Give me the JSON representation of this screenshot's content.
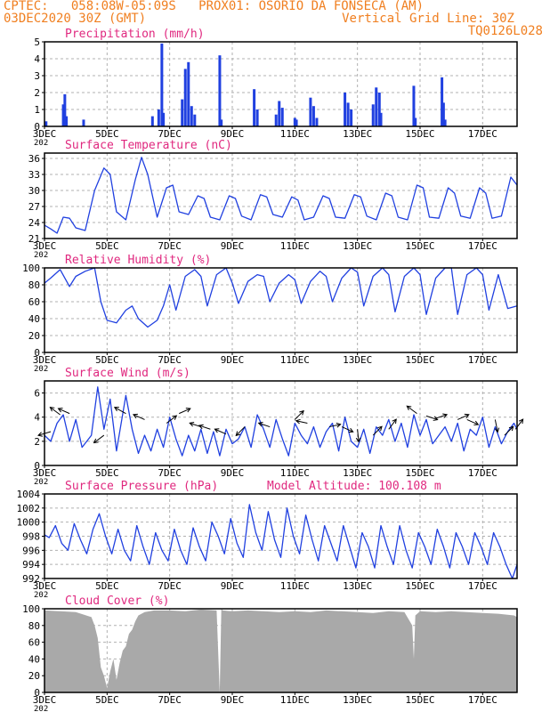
{
  "header": {
    "line1": "CPTEC:   058:08W-05:09S   PROX01: OSORIO DA FONSECA (AM)",
    "date": "03DEC2020 30Z (GMT)",
    "grid_note": "Vertical Grid Line: 30Z",
    "code": "TQ0126L028"
  },
  "colors": {
    "header": "#f07f20",
    "panel_title": "#e0287f",
    "series": "#2040e0",
    "cloud_fill": "#a9a9a9",
    "grid": "#b0b0b0",
    "wind_arrow": "#000000"
  },
  "x_axis": {
    "tick_labels": [
      "3DEC",
      "5DEC",
      "7DEC",
      "9DEC",
      "11DEC",
      "13DEC",
      "15DEC",
      "17DEC"
    ],
    "tick_days": [
      3,
      5,
      7,
      9,
      11,
      13,
      15,
      17
    ],
    "range_days": [
      3,
      18.1
    ],
    "year_stub": "202"
  },
  "chart_data": [
    {
      "id": "precip",
      "type": "bar",
      "title": "Precipitation (mm/h)",
      "ylim": [
        0,
        5
      ],
      "yticks": [
        0,
        1,
        2,
        3,
        4,
        5
      ],
      "grid": true,
      "bars": [
        [
          3.05,
          0.3
        ],
        [
          3.6,
          1.3
        ],
        [
          3.65,
          1.9
        ],
        [
          3.7,
          0.6
        ],
        [
          4.25,
          0.4
        ],
        [
          6.45,
          0.6
        ],
        [
          6.65,
          1.0
        ],
        [
          6.75,
          4.9
        ],
        [
          6.8,
          0.8
        ],
        [
          7.4,
          1.6
        ],
        [
          7.5,
          3.4
        ],
        [
          7.6,
          3.8
        ],
        [
          7.7,
          1.2
        ],
        [
          7.8,
          0.7
        ],
        [
          8.6,
          4.2
        ],
        [
          8.65,
          0.4
        ],
        [
          9.7,
          2.2
        ],
        [
          9.8,
          1.0
        ],
        [
          10.4,
          0.7
        ],
        [
          10.5,
          1.5
        ],
        [
          10.6,
          1.1
        ],
        [
          11.0,
          0.5
        ],
        [
          11.05,
          0.4
        ],
        [
          11.5,
          1.7
        ],
        [
          11.6,
          1.2
        ],
        [
          11.7,
          0.5
        ],
        [
          12.6,
          2.0
        ],
        [
          12.7,
          1.4
        ],
        [
          12.8,
          1.0
        ],
        [
          13.5,
          1.3
        ],
        [
          13.6,
          2.3
        ],
        [
          13.7,
          2.0
        ],
        [
          13.75,
          0.8
        ],
        [
          14.8,
          2.4
        ],
        [
          14.85,
          0.5
        ],
        [
          15.7,
          2.9
        ],
        [
          15.75,
          1.4
        ],
        [
          15.8,
          0.4
        ]
      ]
    },
    {
      "id": "temp",
      "type": "line",
      "title": "Surface Temperature (nC)",
      "ylim": [
        21,
        37
      ],
      "yticks": [
        21,
        24,
        27,
        30,
        33,
        36
      ],
      "grid": true,
      "x": [
        3.0,
        3.2,
        3.4,
        3.6,
        3.8,
        4.0,
        4.3,
        4.6,
        4.9,
        5.1,
        5.3,
        5.6,
        5.9,
        6.1,
        6.3,
        6.6,
        6.9,
        7.1,
        7.3,
        7.6,
        7.9,
        8.1,
        8.3,
        8.6,
        8.9,
        9.1,
        9.3,
        9.6,
        9.9,
        10.1,
        10.3,
        10.6,
        10.9,
        11.1,
        11.3,
        11.6,
        11.9,
        12.1,
        12.3,
        12.6,
        12.9,
        13.1,
        13.3,
        13.6,
        13.9,
        14.1,
        14.3,
        14.6,
        14.9,
        15.1,
        15.3,
        15.6,
        15.9,
        16.1,
        16.3,
        16.6,
        16.9,
        17.1,
        17.3,
        17.6,
        17.9,
        18.1
      ],
      "y": [
        23.5,
        22.8,
        22.0,
        25.0,
        24.8,
        23.0,
        22.5,
        30.0,
        34.2,
        33.0,
        26.0,
        24.5,
        32.0,
        36.2,
        33.0,
        25.0,
        30.5,
        31.0,
        26.0,
        25.5,
        29.0,
        28.5,
        25.0,
        24.5,
        29.0,
        28.5,
        25.2,
        24.5,
        29.2,
        28.8,
        25.5,
        25.0,
        28.8,
        28.2,
        24.5,
        25.0,
        29.0,
        28.5,
        25.0,
        24.8,
        29.2,
        28.8,
        25.2,
        24.5,
        29.5,
        29.0,
        25.0,
        24.5,
        31.0,
        30.5,
        25.0,
        24.8,
        30.5,
        29.5,
        25.2,
        24.8,
        30.5,
        29.5,
        24.8,
        25.2,
        32.5,
        31.0
      ]
    },
    {
      "id": "rh",
      "type": "line",
      "title": "Relative Humidity (%)",
      "ylim": [
        0,
        100
      ],
      "yticks": [
        0,
        20,
        40,
        60,
        80,
        100
      ],
      "grid": true,
      "x": [
        3.0,
        3.2,
        3.5,
        3.8,
        4.0,
        4.3,
        4.6,
        4.8,
        5.0,
        5.3,
        5.6,
        5.8,
        6.0,
        6.3,
        6.6,
        6.8,
        7.0,
        7.2,
        7.5,
        7.8,
        8.0,
        8.2,
        8.5,
        8.8,
        9.0,
        9.2,
        9.5,
        9.8,
        10.0,
        10.2,
        10.5,
        10.8,
        11.0,
        11.2,
        11.5,
        11.8,
        12.0,
        12.2,
        12.5,
        12.8,
        13.0,
        13.2,
        13.5,
        13.8,
        14.0,
        14.2,
        14.5,
        14.8,
        15.0,
        15.2,
        15.5,
        15.8,
        16.0,
        16.2,
        16.5,
        16.8,
        17.0,
        17.2,
        17.5,
        17.8,
        18.1
      ],
      "y": [
        82,
        88,
        98,
        78,
        90,
        96,
        100,
        60,
        38,
        35,
        50,
        55,
        40,
        30,
        38,
        55,
        80,
        50,
        90,
        98,
        90,
        55,
        92,
        100,
        82,
        58,
        84,
        92,
        90,
        60,
        82,
        92,
        86,
        58,
        84,
        96,
        90,
        60,
        88,
        100,
        95,
        55,
        90,
        100,
        92,
        48,
        90,
        100,
        92,
        45,
        88,
        100,
        100,
        45,
        92,
        100,
        92,
        50,
        92,
        52,
        55
      ]
    },
    {
      "id": "wind",
      "type": "line",
      "title": "Surface Wind (m/s)",
      "ylim": [
        0,
        7
      ],
      "yticks": [
        0,
        2,
        4,
        6
      ],
      "grid": true,
      "x": [
        3.0,
        3.2,
        3.4,
        3.6,
        3.8,
        4.0,
        4.2,
        4.5,
        4.7,
        4.9,
        5.1,
        5.3,
        5.6,
        5.8,
        6.0,
        6.2,
        6.4,
        6.6,
        6.8,
        7.0,
        7.2,
        7.4,
        7.6,
        7.8,
        8.0,
        8.2,
        8.4,
        8.6,
        8.8,
        9.0,
        9.2,
        9.4,
        9.6,
        9.8,
        10.0,
        10.2,
        10.4,
        10.6,
        10.8,
        11.0,
        11.2,
        11.4,
        11.6,
        11.8,
        12.0,
        12.2,
        12.4,
        12.6,
        12.8,
        13.0,
        13.2,
        13.4,
        13.6,
        13.8,
        14.0,
        14.2,
        14.4,
        14.6,
        14.8,
        15.0,
        15.2,
        15.4,
        15.6,
        15.8,
        16.0,
        16.2,
        16.4,
        16.6,
        16.8,
        17.0,
        17.2,
        17.4,
        17.6,
        17.8,
        18.0,
        18.1
      ],
      "y": [
        2.5,
        2.0,
        3.5,
        4.2,
        2.0,
        3.8,
        1.5,
        2.5,
        6.5,
        3.0,
        5.5,
        1.2,
        5.8,
        3.0,
        1.0,
        2.5,
        1.2,
        3.0,
        1.5,
        4.0,
        2.2,
        0.8,
        2.5,
        1.2,
        3.0,
        1.0,
        2.8,
        0.8,
        3.0,
        1.8,
        2.2,
        3.2,
        1.5,
        4.2,
        3.0,
        1.5,
        3.8,
        2.2,
        0.8,
        3.5,
        2.5,
        1.8,
        3.2,
        1.5,
        2.8,
        3.5,
        1.2,
        4.0,
        2.0,
        1.5,
        3.0,
        1.0,
        3.2,
        2.5,
        3.8,
        2.0,
        3.5,
        1.5,
        4.2,
        2.5,
        3.8,
        1.8,
        2.5,
        3.2,
        2.0,
        3.5,
        1.2,
        3.0,
        2.5,
        4.0,
        1.5,
        3.2,
        1.8,
        2.8,
        3.5,
        3.0
      ],
      "arrows": [
        {
          "day": 3.2,
          "speed": 2.8,
          "u": -1,
          "v": -0.3
        },
        {
          "day": 3.5,
          "speed": 4.2,
          "u": -0.8,
          "v": 0.6
        },
        {
          "day": 3.8,
          "speed": 4.3,
          "u": -0.9,
          "v": 0.4
        },
        {
          "day": 4.9,
          "speed": 2.5,
          "u": -0.8,
          "v": -0.6
        },
        {
          "day": 5.6,
          "speed": 4.3,
          "u": -0.9,
          "v": 0.5
        },
        {
          "day": 6.2,
          "speed": 3.8,
          "u": -0.9,
          "v": 0.4
        },
        {
          "day": 6.9,
          "speed": 3.5,
          "u": 0.8,
          "v": 0.6
        },
        {
          "day": 7.3,
          "speed": 4.3,
          "u": 0.9,
          "v": 0.4
        },
        {
          "day": 8.0,
          "speed": 3.2,
          "u": -0.9,
          "v": 0.3
        },
        {
          "day": 8.3,
          "speed": 3.0,
          "u": -0.9,
          "v": 0.3
        },
        {
          "day": 8.8,
          "speed": 2.6,
          "u": -0.9,
          "v": 0.4
        },
        {
          "day": 9.4,
          "speed": 3.2,
          "u": -0.7,
          "v": -0.7
        },
        {
          "day": 10.2,
          "speed": 3.2,
          "u": -0.9,
          "v": 0.3
        },
        {
          "day": 11.0,
          "speed": 3.8,
          "u": 0.7,
          "v": 0.7
        },
        {
          "day": 11.4,
          "speed": 3.5,
          "u": -0.9,
          "v": 0.2
        },
        {
          "day": 12.1,
          "speed": 3.2,
          "u": 0.9,
          "v": 0.2
        },
        {
          "day": 12.5,
          "speed": 3.2,
          "u": 0.9,
          "v": -0.4
        },
        {
          "day": 13.0,
          "speed": 3.0,
          "u": 0.1,
          "v": -1
        },
        {
          "day": 13.5,
          "speed": 2.5,
          "u": 0.7,
          "v": 0.7
        },
        {
          "day": 14.0,
          "speed": 3.0,
          "u": 0.6,
          "v": 0.8
        },
        {
          "day": 14.9,
          "speed": 4.3,
          "u": -0.8,
          "v": 0.6
        },
        {
          "day": 15.2,
          "speed": 4.1,
          "u": 0.9,
          "v": -0.3
        },
        {
          "day": 15.5,
          "speed": 3.9,
          "u": 0.9,
          "v": 0.3
        },
        {
          "day": 16.2,
          "speed": 3.8,
          "u": 0.9,
          "v": 0.4
        },
        {
          "day": 16.5,
          "speed": 3.8,
          "u": 0.9,
          "v": -0.4
        },
        {
          "day": 17.4,
          "speed": 3.8,
          "u": 0.2,
          "v": -1
        },
        {
          "day": 17.7,
          "speed": 2.5,
          "u": 0.7,
          "v": 0.7
        },
        {
          "day": 18.05,
          "speed": 3.0,
          "u": 0.6,
          "v": 0.8
        }
      ]
    },
    {
      "id": "pressure",
      "type": "line",
      "title": "Surface Pressure (hPa)",
      "note": "Model Altitude: 100.108  m",
      "ylim": [
        992,
        1004
      ],
      "yticks": [
        992,
        994,
        996,
        998,
        1000,
        1002,
        1004
      ],
      "grid": true,
      "x": [
        3.0,
        3.15,
        3.35,
        3.55,
        3.75,
        3.95,
        4.15,
        4.35,
        4.55,
        4.75,
        4.95,
        5.15,
        5.35,
        5.55,
        5.75,
        5.95,
        6.15,
        6.35,
        6.55,
        6.75,
        6.95,
        7.15,
        7.35,
        7.55,
        7.75,
        7.95,
        8.15,
        8.35,
        8.55,
        8.75,
        8.95,
        9.15,
        9.35,
        9.55,
        9.75,
        9.95,
        10.15,
        10.35,
        10.55,
        10.75,
        10.95,
        11.15,
        11.35,
        11.55,
        11.75,
        11.95,
        12.15,
        12.35,
        12.55,
        12.75,
        12.95,
        13.15,
        13.35,
        13.55,
        13.75,
        13.95,
        14.15,
        14.35,
        14.55,
        14.75,
        14.95,
        15.15,
        15.35,
        15.55,
        15.75,
        15.95,
        16.15,
        16.35,
        16.55,
        16.75,
        16.95,
        17.15,
        17.35,
        17.55,
        17.75,
        17.95,
        18.1
      ],
      "y": [
        998.2,
        997.8,
        999.5,
        997.0,
        996.0,
        999.8,
        997.5,
        995.5,
        999.0,
        1001.2,
        998.0,
        995.5,
        999.0,
        996.0,
        994.5,
        999.5,
        996.5,
        994.0,
        998.5,
        996.0,
        994.5,
        999.0,
        996.0,
        994.0,
        999.2,
        996.5,
        994.5,
        1000.0,
        998.0,
        995.5,
        1000.5,
        997.0,
        995.0,
        1002.5,
        998.5,
        996.0,
        1001.5,
        997.5,
        995.0,
        1002.0,
        998.0,
        995.5,
        1001.0,
        997.5,
        994.5,
        999.5,
        997.0,
        994.5,
        999.5,
        996.5,
        993.5,
        998.5,
        996.5,
        993.5,
        999.5,
        996.5,
        994.0,
        999.5,
        996.0,
        993.5,
        998.5,
        996.5,
        994.0,
        999.0,
        996.5,
        993.5,
        998.5,
        996.5,
        994.0,
        998.5,
        996.5,
        994.0,
        998.5,
        996.5,
        994.0,
        992.0,
        994.0
      ]
    },
    {
      "id": "cloud",
      "type": "area",
      "title": "Cloud Cover (%)",
      "ylim": [
        0,
        100
      ],
      "yticks": [
        0,
        20,
        40,
        60,
        80,
        100
      ],
      "grid": true,
      "x": [
        3.0,
        3.5,
        4.0,
        4.5,
        4.6,
        4.7,
        4.8,
        4.9,
        5.0,
        5.1,
        5.2,
        5.3,
        5.4,
        5.5,
        5.6,
        5.7,
        5.8,
        5.9,
        6.0,
        6.2,
        6.5,
        7.0,
        7.5,
        8.0,
        8.5,
        8.6,
        8.65,
        8.7,
        9.0,
        9.5,
        10.0,
        10.5,
        11.0,
        11.5,
        12.0,
        12.5,
        13.0,
        13.5,
        14.0,
        14.5,
        14.75,
        14.8,
        14.85,
        15.0,
        15.5,
        16.0,
        16.5,
        17.0,
        17.5,
        18.0,
        18.1
      ],
      "y": [
        98,
        97,
        96,
        90,
        80,
        65,
        30,
        20,
        5,
        25,
        40,
        15,
        35,
        50,
        55,
        70,
        75,
        85,
        92,
        96,
        98,
        98,
        97,
        99,
        98,
        0,
        100,
        98,
        97,
        98,
        97,
        96,
        97,
        96,
        98,
        97,
        96,
        95,
        97,
        96,
        80,
        40,
        92,
        97,
        96,
        97,
        96,
        95,
        94,
        92,
        90
      ]
    }
  ]
}
